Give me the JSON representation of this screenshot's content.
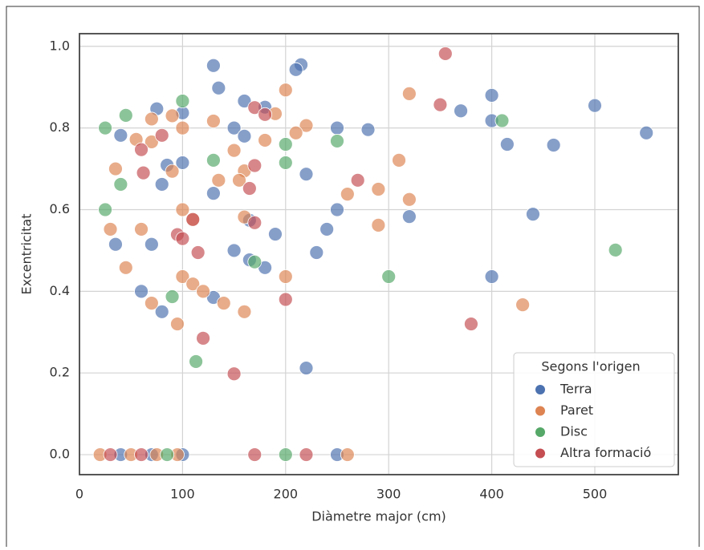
{
  "chart_data": {
    "type": "scatter",
    "x_label": "Diàmetre major (cm)",
    "y_label": "Excentricitat",
    "xlim": [
      0,
      581
    ],
    "ylim": [
      -0.049,
      1.031
    ],
    "xticks": [
      0,
      100,
      200,
      300,
      400,
      500
    ],
    "yticks": [
      {
        "value": 0,
        "label": "0.0"
      },
      0.2,
      0.4,
      0.6,
      0.8,
      {
        "value": 1,
        "label": "1.0"
      }
    ],
    "grid": true,
    "legend_title": "Segons l'origen",
    "legend_position": "lower right",
    "series": [
      {
        "name": "Terra",
        "color": "#4c72b0",
        "x": [
          130,
          135,
          215,
          210,
          160,
          180,
          75,
          100,
          40,
          150,
          250,
          280,
          400,
          370,
          400,
          415,
          460,
          500,
          550,
          160,
          85,
          100,
          80,
          130,
          220,
          35,
          70,
          165,
          320,
          250,
          240,
          190,
          150,
          230,
          165,
          180,
          60,
          130,
          80,
          440,
          400,
          220,
          40,
          70,
          100,
          250
        ],
        "values": [
          0.953,
          0.898,
          0.955,
          0.943,
          0.866,
          0.851,
          0.847,
          0.837,
          0.782,
          0.8,
          0.8,
          0.796,
          0.88,
          0.842,
          0.818,
          0.76,
          0.758,
          0.855,
          0.788,
          0.78,
          0.709,
          0.715,
          0.662,
          0.64,
          0.687,
          0.515,
          0.515,
          0.574,
          0.583,
          0.6,
          0.552,
          0.54,
          0.5,
          0.495,
          0.477,
          0.458,
          0.4,
          0.385,
          0.35,
          0.589,
          0.436,
          0.212,
          0,
          0,
          0,
          0
        ]
      },
      {
        "name": "Paret",
        "color": "#dd8452",
        "x": [
          200,
          320,
          70,
          90,
          130,
          190,
          100,
          220,
          210,
          55,
          180,
          70,
          150,
          35,
          90,
          160,
          135,
          155,
          310,
          290,
          260,
          320,
          100,
          110,
          160,
          30,
          60,
          290,
          45,
          100,
          200,
          110,
          120,
          140,
          70,
          160,
          95,
          430,
          20,
          50,
          75,
          95,
          260
        ],
        "values": [
          0.893,
          0.884,
          0.822,
          0.83,
          0.817,
          0.835,
          0.8,
          0.806,
          0.788,
          0.772,
          0.77,
          0.766,
          0.745,
          0.7,
          0.694,
          0.695,
          0.672,
          0.672,
          0.721,
          0.65,
          0.638,
          0.625,
          0.6,
          0.576,
          0.582,
          0.552,
          0.552,
          0.562,
          0.458,
          0.436,
          0.436,
          0.418,
          0.4,
          0.371,
          0.371,
          0.35,
          0.32,
          0.367,
          0,
          0,
          0,
          0,
          0
        ]
      },
      {
        "name": "Disc",
        "color": "#55a868",
        "x": [
          45,
          100,
          25,
          410,
          250,
          200,
          130,
          200,
          40,
          25,
          170,
          300,
          90,
          113,
          520,
          85,
          200
        ],
        "values": [
          0.831,
          0.866,
          0.8,
          0.818,
          0.768,
          0.76,
          0.721,
          0.715,
          0.662,
          0.6,
          0.472,
          0.436,
          0.387,
          0.228,
          0.501,
          0,
          0
        ]
      },
      {
        "name": "Altra formació",
        "color": "#c44e52",
        "x": [
          355,
          350,
          170,
          180,
          80,
          60,
          170,
          62,
          165,
          270,
          110,
          170,
          95,
          100,
          115,
          200,
          380,
          120,
          150,
          60,
          170,
          220,
          30
        ],
        "values": [
          0.982,
          0.857,
          0.85,
          0.833,
          0.782,
          0.747,
          0.708,
          0.69,
          0.652,
          0.672,
          0.576,
          0.568,
          0.539,
          0.529,
          0.495,
          0.38,
          0.32,
          0.285,
          0.198,
          0,
          0,
          0,
          0
        ]
      }
    ]
  }
}
